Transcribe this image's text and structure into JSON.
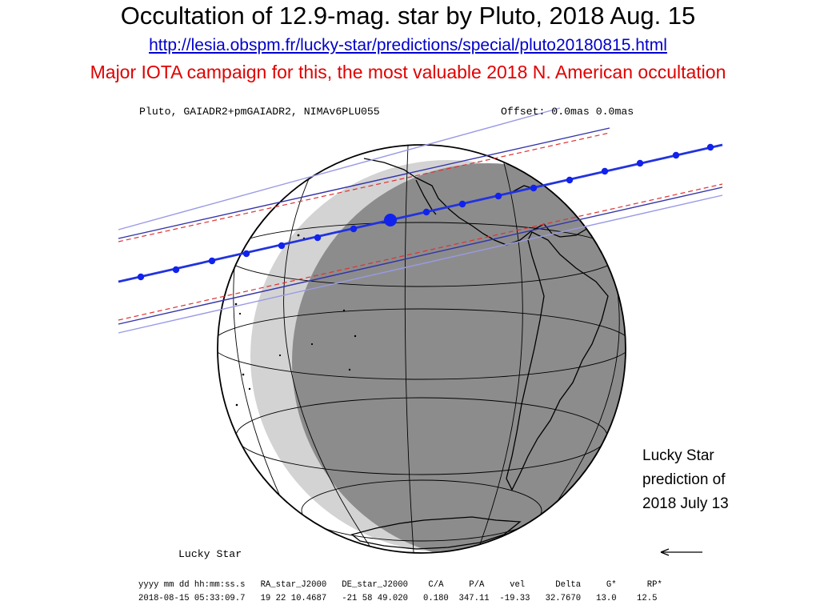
{
  "title": "Occultation of 12.9-mag. star by Pluto, 2018 Aug. 15",
  "link": "http://lesia.obspm.fr/lucky-star/predictions/special/pluto20180815.html",
  "campaign": "Major IOTA campaign for this, the most valuable 2018 N. American occultation",
  "map": {
    "header_left": "Pluto, GAIADR2+pmGAIADR2, NIMAv6PLU055",
    "header_right": "Offset: 0.0mas 0.0mas",
    "footer_label": "Lucky Star",
    "direction_icon": "arrow-left-icon",
    "colors": {
      "day_side": "#ffffff",
      "twilight": "#d3d3d3",
      "night_side": "#8c8c8c",
      "central_line": "#2233dd",
      "limit_line": "#3333aa",
      "uncertainty_line": "#9a9ae6",
      "dashed_line": "#dd3333"
    }
  },
  "note": {
    "line1": "Lucky Star",
    "line2": "prediction of",
    "line3": "2018 July 13"
  },
  "table": {
    "headers": "yyyy mm dd hh:mm:ss.s   RA_star_J2000   DE_star_J2000    C/A     P/A     vel      Delta     G*      RP*",
    "values": "2018-08-15 05:33:09.7   19 22 10.4687   -21 58 49.020   0.180  347.11  -19.33   32.7670   13.0    12.5"
  }
}
